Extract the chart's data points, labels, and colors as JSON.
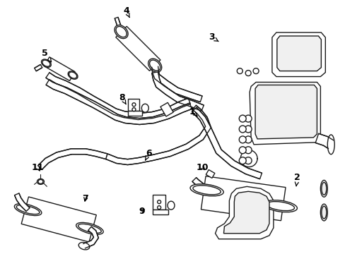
{
  "bg_color": "#ffffff",
  "lc": "#1a1a1a",
  "lw": 1.0,
  "figsize": [
    4.89,
    3.6
  ],
  "dpi": 100,
  "annotations": [
    [
      "1",
      272,
      158,
      280,
      165
    ],
    [
      "2",
      422,
      252,
      420,
      268
    ],
    [
      "3",
      300,
      52,
      310,
      58
    ],
    [
      "4",
      178,
      14,
      183,
      24
    ],
    [
      "5",
      62,
      75,
      72,
      88
    ],
    [
      "6",
      210,
      218,
      205,
      228
    ],
    [
      "7",
      120,
      282,
      118,
      290
    ],
    [
      "8",
      172,
      138,
      178,
      148
    ],
    [
      "9",
      200,
      300,
      207,
      295
    ],
    [
      "10",
      287,
      238,
      293,
      244
    ],
    [
      "11",
      52,
      238,
      57,
      246
    ]
  ]
}
